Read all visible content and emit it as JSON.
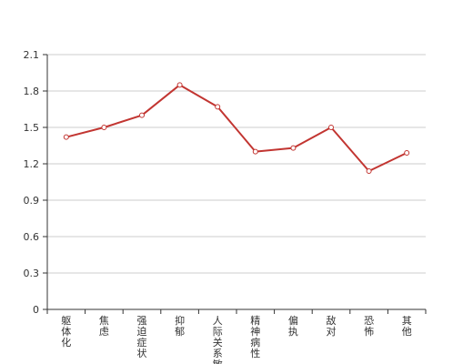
{
  "chart_data": {
    "type": "line",
    "title": "",
    "xlabel": "",
    "ylabel": "",
    "categories": [
      "躯体化",
      "焦虑",
      "强迫症状",
      "抑郁",
      "人际关系敏感",
      "精神病性",
      "偏执",
      "敌对",
      "恐怖",
      "其他"
    ],
    "series": [
      {
        "values": [
          1.42,
          1.5,
          1.6,
          1.85,
          1.67,
          1.3,
          1.33,
          1.5,
          1.14,
          1.29
        ]
      }
    ],
    "ylim": [
      0,
      2.1
    ],
    "yticks": [
      "0",
      "0.3",
      "0.6",
      "0.9",
      "1.2",
      "1.5",
      "1.8",
      "2.1"
    ],
    "grid": true,
    "colors": {
      "line": "#c23531",
      "grid": "#cccccc",
      "axis": "#333333",
      "marker_fill": "#ffffff"
    }
  }
}
